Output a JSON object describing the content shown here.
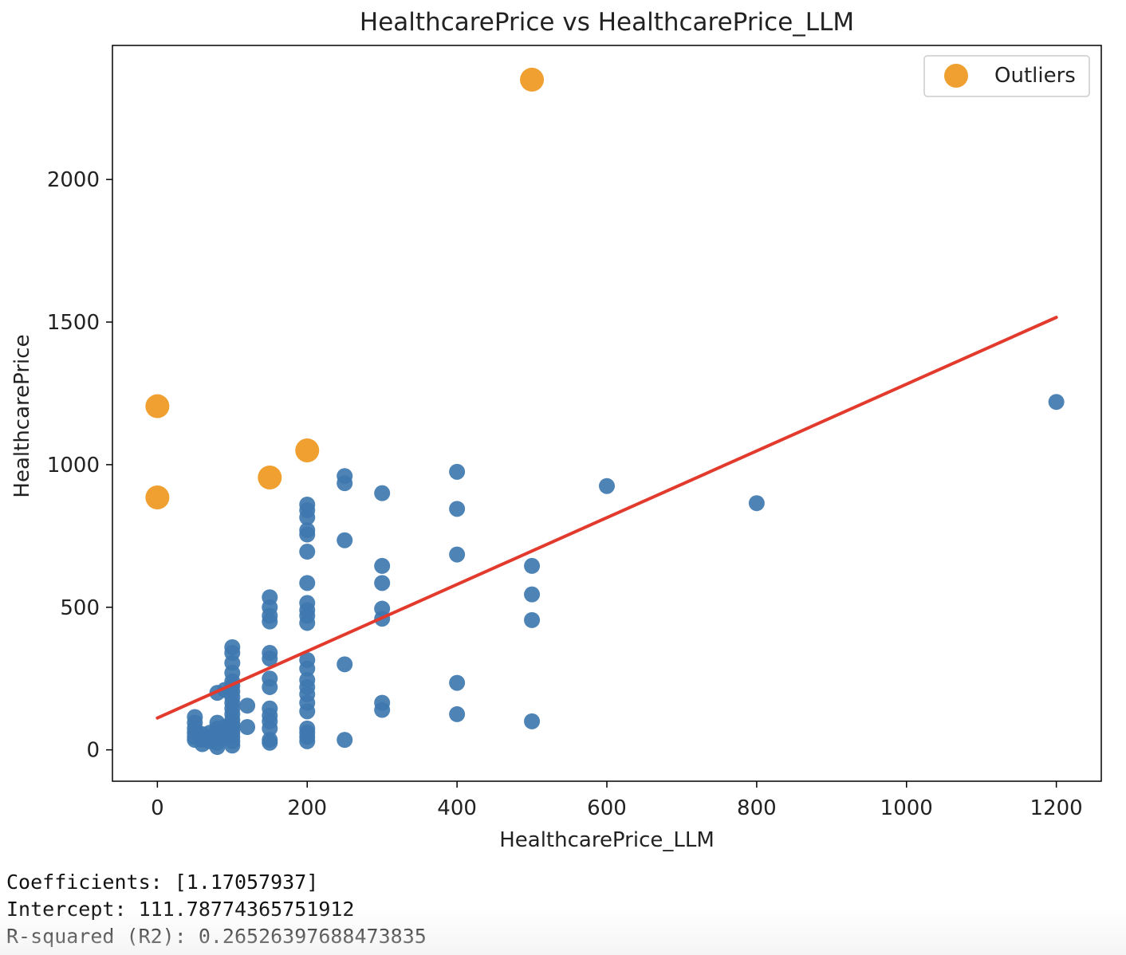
{
  "chart_data": {
    "type": "scatter",
    "title": "HealthcarePrice vs HealthcarePrice_LLM",
    "xlabel": "HealthcarePrice_LLM",
    "ylabel": "HealthcarePrice",
    "xlim": [
      -60,
      1260
    ],
    "ylim": [
      -110,
      2470
    ],
    "xticks": [
      0,
      200,
      400,
      600,
      800,
      1000,
      1200
    ],
    "yticks": [
      0,
      500,
      1000,
      1500,
      2000
    ],
    "grid": false,
    "legend_position": "top-right",
    "colors": {
      "points": "#3f78b0",
      "outliers": "#f0a030",
      "fit_line": "#e23a2c"
    },
    "series": [
      {
        "name": "",
        "kind": "scatter",
        "points": [
          [
            50,
            115
          ],
          [
            50,
            95
          ],
          [
            50,
            75
          ],
          [
            50,
            60
          ],
          [
            50,
            45
          ],
          [
            50,
            35
          ],
          [
            60,
            55
          ],
          [
            60,
            35
          ],
          [
            60,
            20
          ],
          [
            70,
            60
          ],
          [
            70,
            45
          ],
          [
            70,
            30
          ],
          [
            80,
            200
          ],
          [
            80,
            95
          ],
          [
            80,
            75
          ],
          [
            80,
            60
          ],
          [
            80,
            40
          ],
          [
            80,
            25
          ],
          [
            80,
            10
          ],
          [
            90,
            210
          ],
          [
            90,
            80
          ],
          [
            90,
            50
          ],
          [
            100,
            360
          ],
          [
            100,
            340
          ],
          [
            100,
            305
          ],
          [
            100,
            270
          ],
          [
            100,
            240
          ],
          [
            100,
            225
          ],
          [
            100,
            205
          ],
          [
            100,
            185
          ],
          [
            100,
            165
          ],
          [
            100,
            145
          ],
          [
            100,
            125
          ],
          [
            100,
            105
          ],
          [
            100,
            90
          ],
          [
            100,
            75
          ],
          [
            100,
            60
          ],
          [
            100,
            45
          ],
          [
            100,
            30
          ],
          [
            100,
            15
          ],
          [
            120,
            155
          ],
          [
            120,
            80
          ],
          [
            150,
            535
          ],
          [
            150,
            500
          ],
          [
            150,
            470
          ],
          [
            150,
            450
          ],
          [
            150,
            340
          ],
          [
            150,
            320
          ],
          [
            150,
            250
          ],
          [
            150,
            220
          ],
          [
            150,
            145
          ],
          [
            150,
            120
          ],
          [
            150,
            100
          ],
          [
            150,
            75
          ],
          [
            150,
            35
          ],
          [
            150,
            25
          ],
          [
            200,
            860
          ],
          [
            200,
            840
          ],
          [
            200,
            815
          ],
          [
            200,
            770
          ],
          [
            200,
            755
          ],
          [
            200,
            695
          ],
          [
            200,
            585
          ],
          [
            200,
            515
          ],
          [
            200,
            490
          ],
          [
            200,
            470
          ],
          [
            200,
            445
          ],
          [
            200,
            315
          ],
          [
            200,
            285
          ],
          [
            200,
            245
          ],
          [
            200,
            220
          ],
          [
            200,
            195
          ],
          [
            200,
            165
          ],
          [
            200,
            135
          ],
          [
            200,
            75
          ],
          [
            200,
            60
          ],
          [
            200,
            45
          ],
          [
            200,
            30
          ],
          [
            250,
            960
          ],
          [
            250,
            935
          ],
          [
            250,
            735
          ],
          [
            250,
            300
          ],
          [
            250,
            35
          ],
          [
            300,
            900
          ],
          [
            300,
            645
          ],
          [
            300,
            585
          ],
          [
            300,
            495
          ],
          [
            300,
            460
          ],
          [
            300,
            165
          ],
          [
            300,
            140
          ],
          [
            400,
            975
          ],
          [
            400,
            845
          ],
          [
            400,
            685
          ],
          [
            400,
            235
          ],
          [
            400,
            125
          ],
          [
            500,
            645
          ],
          [
            500,
            545
          ],
          [
            500,
            455
          ],
          [
            500,
            100
          ],
          [
            600,
            925
          ],
          [
            800,
            865
          ],
          [
            1200,
            1220
          ]
        ]
      },
      {
        "name": "Outliers",
        "kind": "scatter",
        "points": [
          [
            0,
            1205
          ],
          [
            0,
            885
          ],
          [
            150,
            955
          ],
          [
            200,
            1050
          ],
          [
            500,
            2350
          ]
        ]
      },
      {
        "name": "",
        "kind": "line",
        "points": [
          [
            0,
            111.79
          ],
          [
            1200,
            1516.48
          ]
        ]
      }
    ]
  },
  "output": {
    "line1": "Coefficients: [1.17057937]",
    "line2": "Intercept: 111.78774365751912",
    "line3": "R-squared (R2): 0.26526397688473835"
  }
}
